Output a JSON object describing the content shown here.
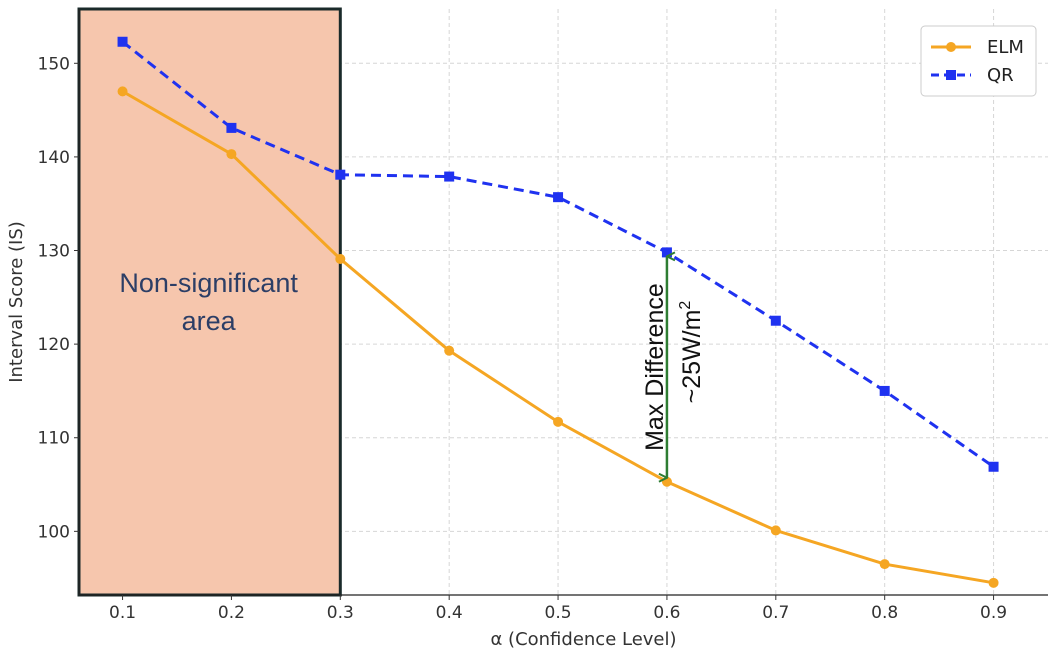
{
  "chart_data": {
    "type": "line",
    "x": [
      0.1,
      0.2,
      0.3,
      0.4,
      0.5,
      0.6,
      0.7,
      0.8,
      0.9
    ],
    "x_tick_labels": [
      "0.1",
      "0.2",
      "0.3",
      "0.4",
      "0.5",
      "0.6",
      "0.7",
      "0.8",
      "0.9"
    ],
    "series": [
      {
        "name": "ELM",
        "values": [
          147.0,
          140.3,
          129.1,
          119.3,
          111.7,
          105.3,
          100.1,
          96.5,
          94.5
        ],
        "color": "#f5a623",
        "line_style": "solid",
        "marker": "circle"
      },
      {
        "name": "QR",
        "values": [
          152.3,
          143.1,
          138.1,
          137.9,
          135.7,
          129.8,
          122.5,
          115.0,
          106.9
        ],
        "color": "#1f32f0",
        "line_style": "dashed",
        "marker": "square"
      }
    ],
    "xlabel": "α (Confidence Level)",
    "ylabel": "Interval Score (IS)",
    "y_ticks": [
      100,
      110,
      120,
      130,
      140,
      150
    ],
    "xlim": [
      0.06,
      0.95
    ],
    "ylim": [
      93.2,
      155.8
    ],
    "grid": true,
    "legend_position": "top-right",
    "shaded_region": {
      "x_range": [
        0.06,
        0.3
      ],
      "label_lines": [
        "Non-significant",
        "area"
      ],
      "fill_color": "#f6c6ad",
      "border_color": "#1a2a2a"
    },
    "annotation": {
      "x": 0.6,
      "y_from": 105.3,
      "y_to": 129.8,
      "text_line1": "Max Difference",
      "text_line2_prefix": "~25W/m",
      "text_line2_sup": "2",
      "color": "#2e7d32"
    }
  }
}
